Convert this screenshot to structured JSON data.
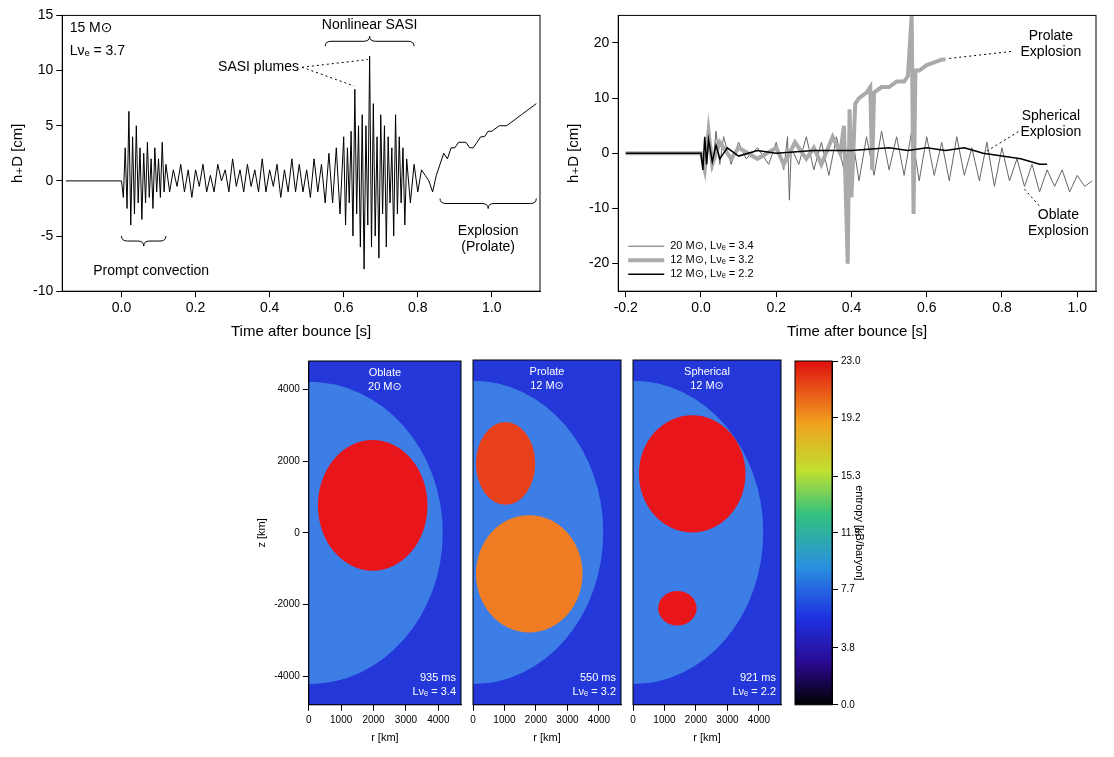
{
  "chart_data": [
    {
      "type": "line",
      "x_label": "Time after bounce [s]",
      "y_label": "h₊D [cm]",
      "xlim": [
        -0.16,
        1.13
      ],
      "xticks": [
        {
          "value": 0,
          "label": "0.0"
        },
        0.2,
        0.4,
        0.6,
        0.8,
        {
          "value": 1,
          "label": "1.0"
        }
      ],
      "ylim": [
        -10,
        15
      ],
      "yticks": [
        -10,
        -5,
        0,
        5,
        10,
        15
      ],
      "grid": false,
      "annotations": [
        "15 M⊙",
        "Lνₑ = 3.7",
        "Nonlinear SASI",
        "SASI plumes",
        "Prompt convection",
        "Explosion (Prolate)"
      ],
      "series": [
        {
          "color": "#000000",
          "x": [
            -0.15,
            -0.05,
            0,
            0.005,
            0.01,
            0.015,
            0.02,
            0.025,
            0.03,
            0.035,
            0.04,
            0.045,
            0.05,
            0.055,
            0.06,
            0.065,
            0.07,
            0.075,
            0.08,
            0.085,
            0.09,
            0.095,
            0.1,
            0.105,
            0.11,
            0.115,
            0.12,
            0.13,
            0.14,
            0.15,
            0.16,
            0.17,
            0.18,
            0.19,
            0.2,
            0.21,
            0.22,
            0.23,
            0.24,
            0.25,
            0.26,
            0.27,
            0.28,
            0.29,
            0.3,
            0.31,
            0.32,
            0.33,
            0.34,
            0.35,
            0.36,
            0.37,
            0.38,
            0.39,
            0.4,
            0.41,
            0.42,
            0.43,
            0.44,
            0.45,
            0.46,
            0.47,
            0.48,
            0.49,
            0.5,
            0.51,
            0.52,
            0.53,
            0.54,
            0.55,
            0.56,
            0.57,
            0.58,
            0.59,
            0.6,
            0.605,
            0.61,
            0.615,
            0.62,
            0.625,
            0.63,
            0.635,
            0.64,
            0.645,
            0.65,
            0.655,
            0.66,
            0.665,
            0.67,
            0.675,
            0.68,
            0.685,
            0.69,
            0.695,
            0.7,
            0.705,
            0.71,
            0.715,
            0.72,
            0.725,
            0.73,
            0.735,
            0.74,
            0.745,
            0.75,
            0.755,
            0.76,
            0.765,
            0.77,
            0.78,
            0.79,
            0.8,
            0.81,
            0.82,
            0.83,
            0.84,
            0.85,
            0.86,
            0.87,
            0.88,
            0.89,
            0.9,
            0.91,
            0.92,
            0.93,
            0.94,
            0.95,
            0.96,
            0.97,
            0.98,
            0.99,
            1.0,
            1.02,
            1.04,
            1.06,
            1.08,
            1.1,
            1.12
          ],
          "values": [
            0,
            0,
            0,
            -1.5,
            3,
            -2.5,
            6.3,
            -4,
            4,
            -3,
            5,
            -2,
            3,
            -3.5,
            2.5,
            -2,
            3.5,
            -1.5,
            2,
            -2.5,
            3,
            -1,
            2,
            -1.5,
            3.5,
            -1,
            1.5,
            -1,
            1,
            -0.5,
            1.5,
            -1,
            1,
            -1.5,
            1,
            -0.5,
            1.5,
            -1,
            0.5,
            -1,
            1.5,
            0,
            1,
            -1,
            2,
            -0.5,
            1,
            -1,
            1.5,
            -0.5,
            1,
            -1,
            2,
            -1,
            1,
            -0.5,
            1.5,
            -1.5,
            1,
            -1,
            2,
            -1,
            1.5,
            -1,
            1,
            -1.5,
            2,
            -1,
            1.5,
            -2,
            2.5,
            -2,
            3,
            -3,
            4,
            -4,
            3,
            -2,
            4.5,
            -5,
            8.3,
            -3,
            5,
            -6,
            6,
            -8,
            5,
            -4,
            11.3,
            -6,
            7,
            -5,
            4,
            -7,
            6,
            -3,
            5,
            -6,
            4,
            -2,
            3,
            -5,
            6,
            -3,
            4,
            -2,
            3,
            -4,
            2,
            -2,
            1.5,
            -1,
            1,
            0.5,
            0,
            -1,
            0.5,
            1.5,
            2.5,
            2,
            3,
            3,
            3.5,
            3.5,
            3.5,
            3,
            3,
            3.5,
            4,
            4,
            4.5,
            4.5,
            5,
            5,
            5.5,
            6,
            6.5,
            7
          ]
        }
      ]
    },
    {
      "type": "line",
      "x_label": "Time after bounce [s]",
      "y_label": "h₊D [cm]",
      "xlim": [
        -0.22,
        1.05
      ],
      "xticks": [
        -0.2,
        {
          "value": 0,
          "label": "0.0"
        },
        0.2,
        0.4,
        0.6,
        0.8,
        {
          "value": 1,
          "label": "1.0"
        }
      ],
      "ylim": [
        -25,
        25
      ],
      "yticks": [
        -20,
        -10,
        0,
        10,
        20
      ],
      "grid": false,
      "legend": "lower left",
      "annotations": [
        "Prolate Explosion",
        "Spherical Explosion",
        "Oblate Explosion"
      ],
      "series": [
        {
          "name": "20 M⊙, Lνₑ = 3.4",
          "color": "#666666",
          "x": [
            -0.2,
            -0.05,
            0,
            0.01,
            0.02,
            0.03,
            0.04,
            0.05,
            0.06,
            0.08,
            0.1,
            0.12,
            0.15,
            0.18,
            0.2,
            0.22,
            0.23,
            0.235,
            0.24,
            0.26,
            0.28,
            0.3,
            0.32,
            0.34,
            0.36,
            0.38,
            0.4,
            0.42,
            0.44,
            0.46,
            0.48,
            0.5,
            0.52,
            0.54,
            0.56,
            0.58,
            0.6,
            0.62,
            0.64,
            0.66,
            0.68,
            0.7,
            0.72,
            0.74,
            0.76,
            0.78,
            0.8,
            0.82,
            0.84,
            0.86,
            0.88,
            0.9,
            0.92,
            0.94,
            0.96,
            0.98,
            1.0,
            1.02,
            1.04
          ],
          "values": [
            0,
            0,
            0,
            -4,
            5,
            -3,
            4,
            -2,
            3,
            -2,
            2,
            -1,
            1,
            -2,
            2,
            -3,
            3,
            -8.5,
            1,
            -2,
            3,
            -3,
            2,
            -4,
            3,
            -3,
            4,
            -5,
            3,
            -4,
            4,
            -3,
            3,
            -4,
            4,
            -5,
            3,
            -4,
            2,
            -5,
            3,
            -4,
            1,
            -5,
            2,
            -6,
            1,
            -5,
            -1,
            -6,
            -2,
            -7,
            -3,
            -6,
            -3,
            -7,
            -4,
            -6,
            -5
          ]
        },
        {
          "name": "12 M⊙, Lνₑ = 3.2",
          "color": "#aaaaaa",
          "x": [
            -0.2,
            0,
            0.01,
            0.02,
            0.03,
            0.05,
            0.08,
            0.1,
            0.15,
            0.2,
            0.22,
            0.25,
            0.28,
            0.3,
            0.32,
            0.35,
            0.37,
            0.38,
            0.39,
            0.395,
            0.4,
            0.41,
            0.42,
            0.44,
            0.45,
            0.455,
            0.46,
            0.48,
            0.5,
            0.52,
            0.54,
            0.55,
            0.56,
            0.565,
            0.57,
            0.58,
            0.6,
            0.62,
            0.64,
            0.65
          ],
          "values": [
            0,
            0,
            -3,
            4,
            -2,
            2,
            -1,
            1,
            -1,
            1,
            -2,
            2,
            -1,
            1,
            -2,
            3,
            0,
            5,
            -20,
            8,
            -8,
            9,
            10,
            11,
            12,
            -3,
            11,
            12,
            12,
            13,
            13,
            14,
            25,
            -11,
            15,
            15,
            16,
            16.5,
            17,
            17
          ]
        },
        {
          "name": "12 M⊙, Lνₑ = 2.2",
          "color": "#000000",
          "x": [
            -0.2,
            0,
            0.005,
            0.01,
            0.015,
            0.02,
            0.03,
            0.04,
            0.05,
            0.07,
            0.1,
            0.15,
            0.2,
            0.3,
            0.4,
            0.5,
            0.55,
            0.6,
            0.65,
            0.7,
            0.75,
            0.8,
            0.85,
            0.9,
            0.92
          ],
          "values": [
            0,
            0,
            -3,
            3,
            -2,
            2.5,
            -1.5,
            1.5,
            -1,
            1,
            -0.5,
            0.5,
            0,
            0.5,
            0.5,
            1,
            0.5,
            1,
            0.5,
            1,
            0,
            -0.5,
            -1,
            -2,
            -2
          ]
        }
      ]
    },
    {
      "type": "heatmap",
      "x_label": "r [km]",
      "y_label": "z [km]",
      "xlim": [
        0,
        4700
      ],
      "xticks": [
        0,
        1000,
        2000,
        3000,
        4000
      ],
      "ylim": [
        -4800,
        4800
      ],
      "yticks": [
        -4000,
        -2000,
        0,
        2000,
        4000
      ],
      "panels": [
        {
          "title": "Oblate",
          "mass": "20 M⊙",
          "time": "935 ms",
          "luminosity": "Lνₑ = 3.4"
        },
        {
          "title": "Prolate",
          "mass": "12 M⊙",
          "time": "550 ms",
          "luminosity": "Lνₑ = 3.2"
        },
        {
          "title": "Spherical",
          "mass": "12 M⊙",
          "time": "921 ms",
          "luminosity": "Lνₑ = 2.2"
        }
      ],
      "colorbar": {
        "label": "entropy [kB/baryon]",
        "lim": [
          0,
          23
        ],
        "ticks": [
          {
            "value": 0,
            "label": "0.0"
          },
          3.8,
          7.7,
          11.5,
          15.3,
          19.2,
          {
            "value": 23,
            "label": "23.0"
          }
        ]
      }
    }
  ]
}
